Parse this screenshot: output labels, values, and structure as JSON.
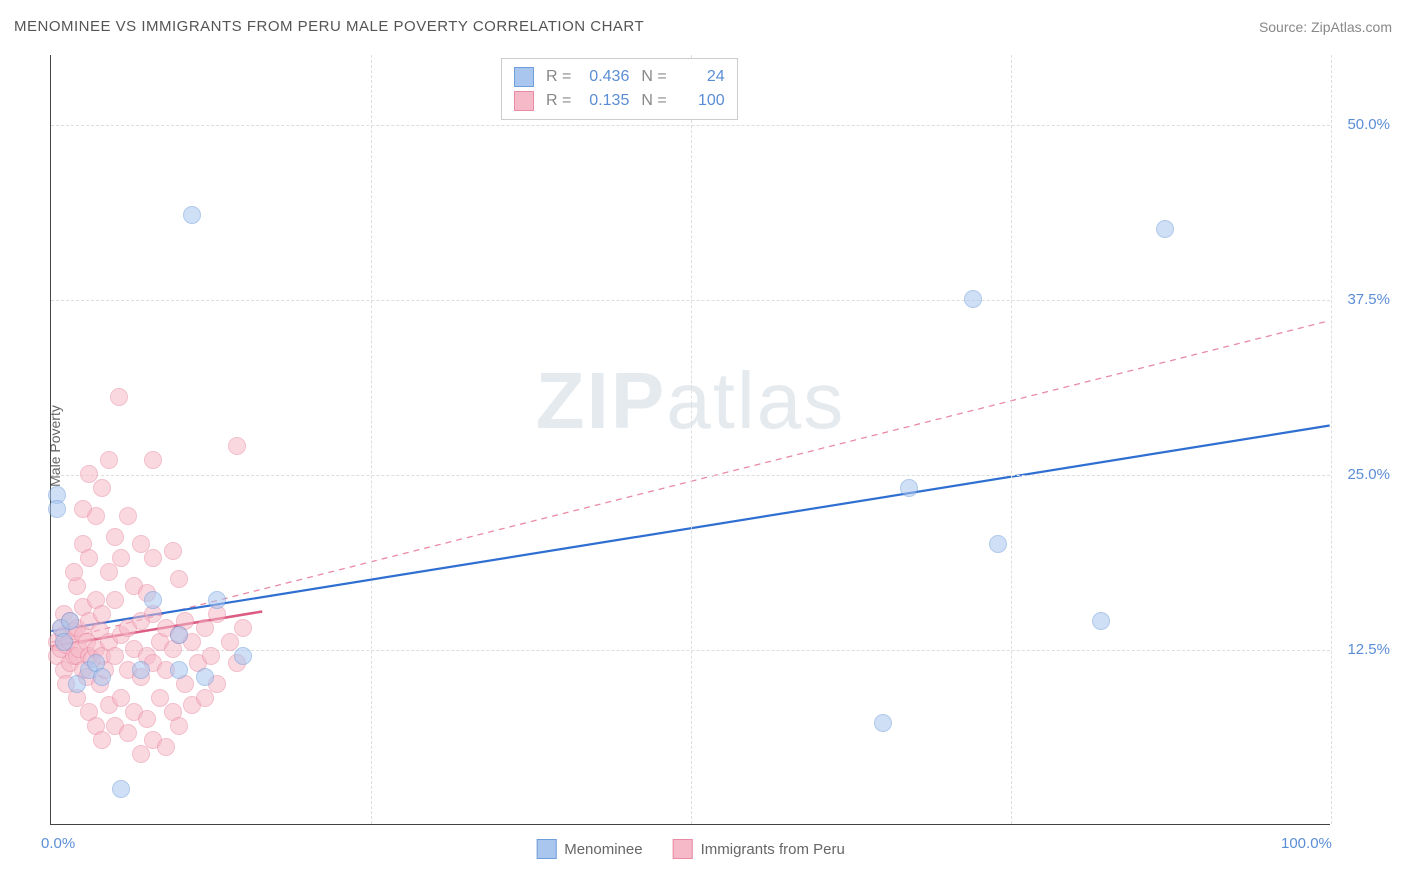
{
  "title": "MENOMINEE VS IMMIGRANTS FROM PERU MALE POVERTY CORRELATION CHART",
  "source": "Source: ZipAtlas.com",
  "y_axis_label": "Male Poverty",
  "watermark": {
    "bold": "ZIP",
    "light": "atlas"
  },
  "chart": {
    "type": "scatter",
    "xlim": [
      0,
      100
    ],
    "ylim": [
      0,
      55
    ],
    "x_ticks": [
      {
        "v": 0,
        "l": "0.0%"
      },
      {
        "v": 100,
        "l": "100.0%"
      }
    ],
    "y_ticks": [
      {
        "v": 12.5,
        "l": "12.5%"
      },
      {
        "v": 25,
        "l": "25.0%"
      },
      {
        "v": 37.5,
        "l": "37.5%"
      },
      {
        "v": 50,
        "l": "50.0%"
      }
    ],
    "grid_v": [
      25,
      50,
      75,
      100
    ],
    "grid_color": "#dddddd",
    "background_color": "#ffffff",
    "point_radius": 9,
    "point_opacity": 0.55,
    "series": [
      {
        "name": "Menominee",
        "color_fill": "#a9c6ef",
        "color_stroke": "#6f9edb",
        "stats": {
          "R": "0.436",
          "N": "24"
        },
        "trend": {
          "x1": 0,
          "y1": 13.8,
          "x2": 100,
          "y2": 28.5,
          "width": 2.2,
          "dash": "none",
          "color": "#2f6fd1"
        },
        "points": [
          [
            0.5,
            23.5
          ],
          [
            0.5,
            22.5
          ],
          [
            0.8,
            14
          ],
          [
            1,
            13
          ],
          [
            1.5,
            14.5
          ],
          [
            2,
            10
          ],
          [
            3,
            11
          ],
          [
            3.5,
            11.5
          ],
          [
            4,
            10.5
          ],
          [
            5.5,
            2.5
          ],
          [
            7,
            11
          ],
          [
            8,
            16
          ],
          [
            10,
            11
          ],
          [
            10,
            13.5
          ],
          [
            12,
            10.5
          ],
          [
            13,
            16
          ],
          [
            15,
            12
          ],
          [
            11,
            43.5
          ],
          [
            65,
            7.2
          ],
          [
            67,
            24
          ],
          [
            72,
            37.5
          ],
          [
            74,
            20
          ],
          [
            82,
            14.5
          ],
          [
            87,
            42.5
          ]
        ]
      },
      {
        "name": "Immigrants from Peru",
        "color_fill": "#f6b9c8",
        "color_stroke": "#e98ba4",
        "stats": {
          "R": "0.135",
          "N": "100"
        },
        "trend_dashed": {
          "x1": 0,
          "y1": 13,
          "x2": 100,
          "y2": 36,
          "width": 1.3,
          "dash": "6,5",
          "color": "#e98ba4"
        },
        "trend": {
          "x1": 0,
          "y1": 12.7,
          "x2": 16.5,
          "y2": 15.2,
          "width": 2.5,
          "dash": "none",
          "color": "#db5b82"
        },
        "points": [
          [
            0.5,
            12
          ],
          [
            0.5,
            13
          ],
          [
            0.8,
            12.5
          ],
          [
            0.8,
            14
          ],
          [
            1,
            11
          ],
          [
            1,
            13.5
          ],
          [
            1,
            15
          ],
          [
            1.2,
            10
          ],
          [
            1.2,
            12.8
          ],
          [
            1.5,
            13
          ],
          [
            1.5,
            14.5
          ],
          [
            1.5,
            11.5
          ],
          [
            1.8,
            12
          ],
          [
            1.8,
            13.8
          ],
          [
            2,
            9
          ],
          [
            2,
            12
          ],
          [
            2,
            14
          ],
          [
            2,
            17
          ],
          [
            2.2,
            12.5
          ],
          [
            2.5,
            11
          ],
          [
            2.5,
            13.5
          ],
          [
            2.5,
            15.5
          ],
          [
            2.5,
            20
          ],
          [
            2.8,
            10.5
          ],
          [
            2.8,
            13
          ],
          [
            3,
            8
          ],
          [
            3,
            12
          ],
          [
            3,
            14.5
          ],
          [
            3,
            19
          ],
          [
            3.2,
            11.8
          ],
          [
            3.5,
            7
          ],
          [
            3.5,
            12.5
          ],
          [
            3.5,
            16
          ],
          [
            3.5,
            22
          ],
          [
            3.8,
            10
          ],
          [
            3.8,
            13.8
          ],
          [
            4,
            6
          ],
          [
            4,
            12
          ],
          [
            4,
            15
          ],
          [
            4,
            24
          ],
          [
            4.2,
            11
          ],
          [
            4.5,
            8.5
          ],
          [
            4.5,
            13
          ],
          [
            4.5,
            18
          ],
          [
            4.5,
            26
          ],
          [
            5,
            7
          ],
          [
            5,
            12
          ],
          [
            5,
            16
          ],
          [
            5,
            20.5
          ],
          [
            5.3,
            30.5
          ],
          [
            5.5,
            9
          ],
          [
            5.5,
            13.5
          ],
          [
            5.5,
            19
          ],
          [
            6,
            6.5
          ],
          [
            6,
            11
          ],
          [
            6,
            14
          ],
          [
            6,
            22
          ],
          [
            6.5,
            8
          ],
          [
            6.5,
            12.5
          ],
          [
            6.5,
            17
          ],
          [
            7,
            5
          ],
          [
            7,
            10.5
          ],
          [
            7,
            14.5
          ],
          [
            7,
            20
          ],
          [
            7.5,
            7.5
          ],
          [
            7.5,
            12
          ],
          [
            7.5,
            16.5
          ],
          [
            8,
            6
          ],
          [
            8,
            11.5
          ],
          [
            8,
            15
          ],
          [
            8,
            19
          ],
          [
            8.5,
            9
          ],
          [
            8.5,
            13
          ],
          [
            9,
            5.5
          ],
          [
            9,
            11
          ],
          [
            9,
            14
          ],
          [
            9.5,
            8
          ],
          [
            9.5,
            12.5
          ],
          [
            9.5,
            19.5
          ],
          [
            10,
            7
          ],
          [
            10,
            13.5
          ],
          [
            10,
            17.5
          ],
          [
            10.5,
            10
          ],
          [
            10.5,
            14.5
          ],
          [
            11,
            8.5
          ],
          [
            11,
            13
          ],
          [
            11.5,
            11.5
          ],
          [
            12,
            9
          ],
          [
            12,
            14
          ],
          [
            12.5,
            12
          ],
          [
            13,
            10
          ],
          [
            13,
            15
          ],
          [
            14,
            13
          ],
          [
            14.5,
            11.5
          ],
          [
            15,
            14
          ],
          [
            14.5,
            27
          ],
          [
            8,
            26
          ],
          [
            3,
            25
          ],
          [
            2.5,
            22.5
          ],
          [
            1.8,
            18
          ]
        ]
      }
    ]
  }
}
